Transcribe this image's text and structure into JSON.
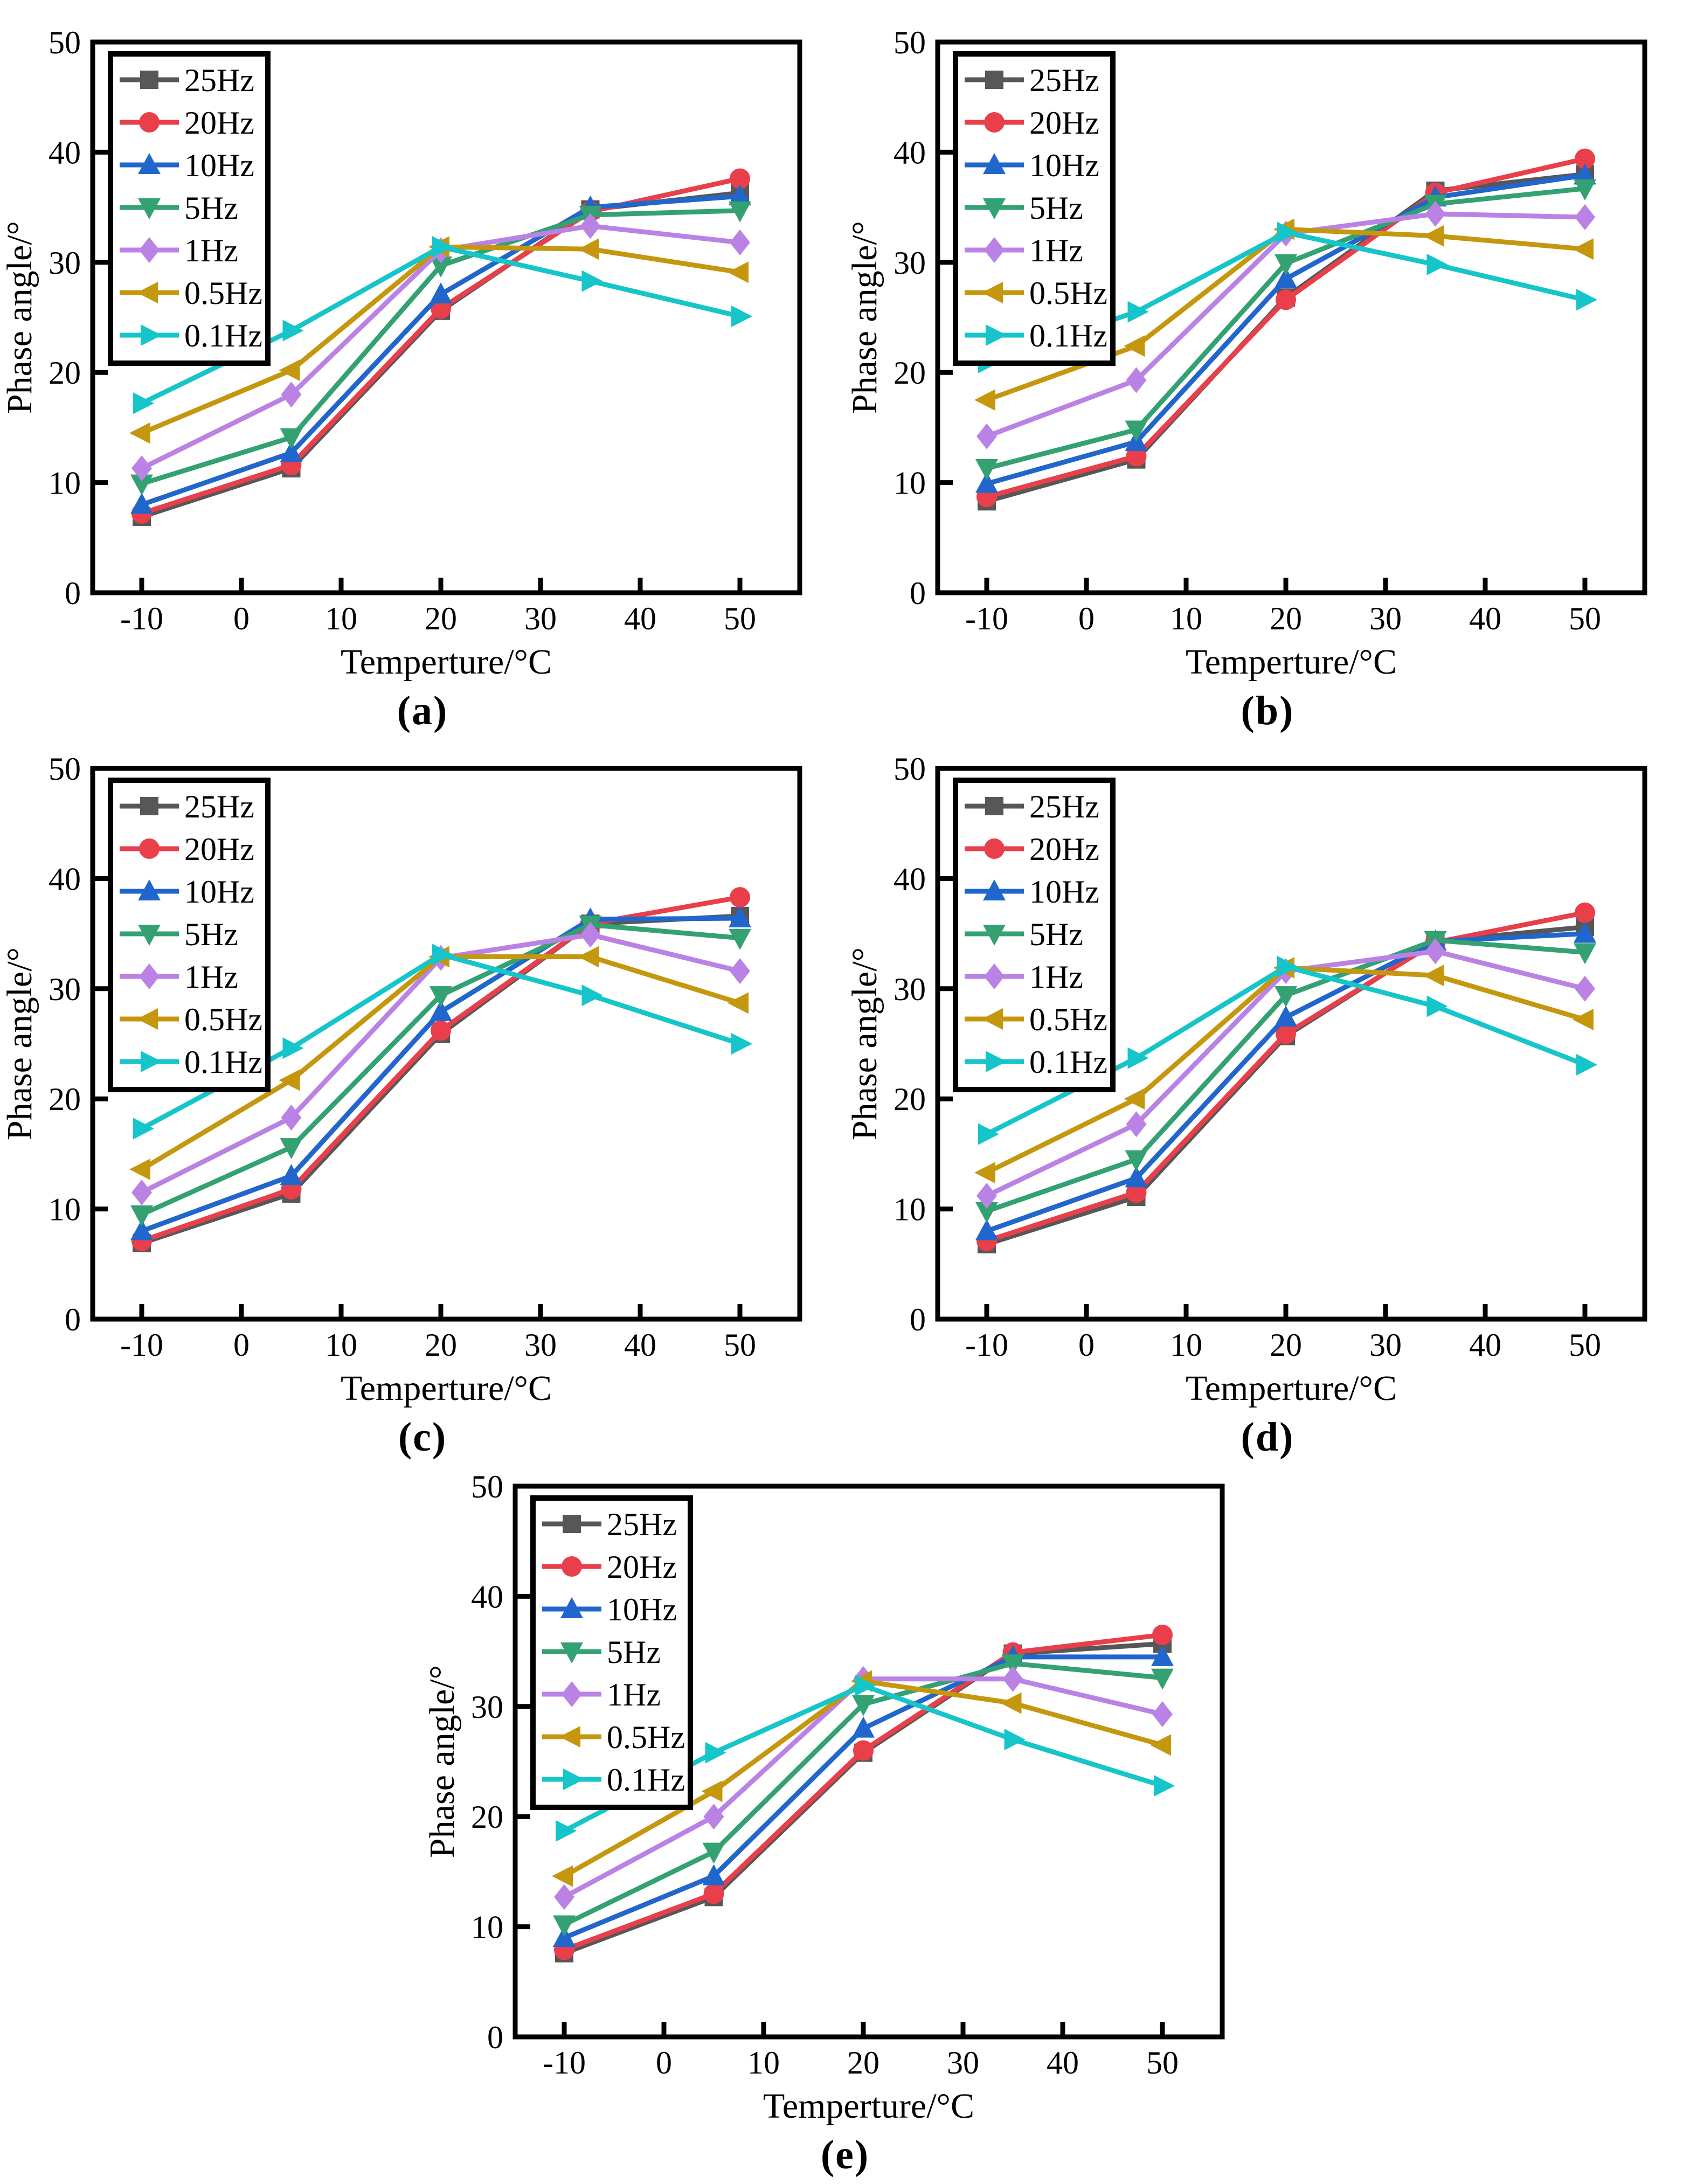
{
  "figure": {
    "background": "#ffffff",
    "axis_color": "#000000",
    "x_label": "Temperture/°C",
    "y_label": "Phase angle/°",
    "x_ticks": [
      -10,
      0,
      10,
      20,
      30,
      40,
      50
    ],
    "y_ticks": [
      0,
      10,
      20,
      30,
      40,
      50
    ],
    "xlim": [
      -14.9,
      56
    ],
    "ylim": [
      0,
      50
    ],
    "legend_entries": [
      "25Hz",
      "20Hz",
      "10Hz",
      "5Hz",
      "1Hz",
      "0.5Hz",
      "0.1Hz"
    ],
    "series_style": {
      "25Hz": {
        "color": "#575757",
        "marker": "square"
      },
      "20Hz": {
        "color": "#e93f4b",
        "marker": "circle"
      },
      "10Hz": {
        "color": "#2166cc",
        "marker": "triangle-up"
      },
      "5Hz": {
        "color": "#33a172",
        "marker": "triangle-down"
      },
      "1Hz": {
        "color": "#bb82e6",
        "marker": "diamond"
      },
      "0.5Hz": {
        "color": "#c4970e",
        "marker": "triangle-left"
      },
      "0.1Hz": {
        "color": "#16c5c9",
        "marker": "triangle-right"
      }
    }
  },
  "chart_data": [
    {
      "id": "a",
      "caption": "(a)",
      "type": "line",
      "xlabel": "Temperture/°C",
      "ylabel": "Phase angle/°",
      "x": [
        -10,
        5,
        20,
        35,
        50
      ],
      "series": [
        {
          "name": "25Hz",
          "values": [
            6.9,
            11.3,
            25.6,
            34.8,
            36.3
          ]
        },
        {
          "name": "20Hz",
          "values": [
            7.2,
            11.6,
            25.8,
            34.6,
            37.6
          ]
        },
        {
          "name": "10Hz",
          "values": [
            8.0,
            12.7,
            27.1,
            35.0,
            36.0
          ]
        },
        {
          "name": "5Hz",
          "values": [
            9.9,
            14.1,
            29.7,
            34.3,
            34.7
          ]
        },
        {
          "name": "1Hz",
          "values": [
            11.3,
            18.0,
            31.1,
            33.3,
            31.8
          ]
        },
        {
          "name": "0.5Hz",
          "values": [
            14.5,
            20.2,
            31.4,
            31.2,
            29.1
          ]
        },
        {
          "name": "0.1Hz",
          "values": [
            17.2,
            23.8,
            31.4,
            28.3,
            25.1
          ]
        }
      ]
    },
    {
      "id": "b",
      "caption": "(b)",
      "type": "line",
      "xlabel": "Temperture/°C",
      "ylabel": "Phase angle/°",
      "x": [
        -10,
        5,
        20,
        35,
        50
      ],
      "series": [
        {
          "name": "25Hz",
          "values": [
            8.3,
            12.1,
            26.8,
            36.5,
            38.0
          ]
        },
        {
          "name": "20Hz",
          "values": [
            8.7,
            12.4,
            26.6,
            36.3,
            39.4
          ]
        },
        {
          "name": "10Hz",
          "values": [
            9.9,
            13.7,
            28.5,
            35.9,
            37.9
          ]
        },
        {
          "name": "5Hz",
          "values": [
            11.3,
            14.8,
            29.9,
            35.3,
            36.7
          ]
        },
        {
          "name": "1Hz",
          "values": [
            14.2,
            19.3,
            32.6,
            34.4,
            34.1
          ]
        },
        {
          "name": "0.5Hz",
          "values": [
            17.5,
            22.4,
            33.0,
            32.4,
            31.2
          ]
        },
        {
          "name": "0.1Hz",
          "values": [
            20.9,
            25.5,
            32.7,
            29.8,
            26.6
          ]
        }
      ]
    },
    {
      "id": "c",
      "caption": "(c)",
      "type": "line",
      "xlabel": "Temperture/°C",
      "ylabel": "Phase angle/°",
      "x": [
        -10,
        5,
        20,
        35,
        50
      ],
      "series": [
        {
          "name": "25Hz",
          "values": [
            6.9,
            11.4,
            25.9,
            35.9,
            36.6
          ]
        },
        {
          "name": "20Hz",
          "values": [
            7.1,
            11.8,
            26.2,
            35.9,
            38.3
          ]
        },
        {
          "name": "10Hz",
          "values": [
            8.0,
            13.0,
            27.9,
            36.3,
            36.4
          ]
        },
        {
          "name": "5Hz",
          "values": [
            9.5,
            15.6,
            29.4,
            35.8,
            34.6
          ]
        },
        {
          "name": "1Hz",
          "values": [
            11.5,
            18.3,
            32.8,
            34.9,
            31.6
          ]
        },
        {
          "name": "0.5Hz",
          "values": [
            13.6,
            21.7,
            32.9,
            32.9,
            28.7
          ]
        },
        {
          "name": "0.1Hz",
          "values": [
            17.3,
            24.6,
            33.1,
            29.4,
            25.0
          ]
        }
      ]
    },
    {
      "id": "d",
      "caption": "(d)",
      "type": "line",
      "xlabel": "Temperture/°C",
      "ylabel": "Phase angle/°",
      "x": [
        -10,
        5,
        20,
        35,
        50
      ],
      "series": [
        {
          "name": "25Hz",
          "values": [
            6.8,
            11.1,
            25.7,
            34.3,
            35.6
          ]
        },
        {
          "name": "20Hz",
          "values": [
            7.1,
            11.5,
            25.9,
            34.2,
            36.9
          ]
        },
        {
          "name": "10Hz",
          "values": [
            8.0,
            12.8,
            27.4,
            34.3,
            35.0
          ]
        },
        {
          "name": "5Hz",
          "values": [
            9.8,
            14.5,
            29.4,
            34.4,
            33.3
          ]
        },
        {
          "name": "1Hz",
          "values": [
            11.2,
            17.7,
            31.6,
            33.4,
            30.0
          ]
        },
        {
          "name": "0.5Hz",
          "values": [
            13.3,
            20.0,
            31.9,
            31.2,
            27.2
          ]
        },
        {
          "name": "0.1Hz",
          "values": [
            16.8,
            23.7,
            32.0,
            28.4,
            23.1
          ]
        }
      ]
    },
    {
      "id": "e",
      "caption": "(e)",
      "type": "line",
      "xlabel": "Temperture/°C",
      "ylabel": "Phase angle/°",
      "x": [
        -10,
        5,
        20,
        35,
        50
      ],
      "series": [
        {
          "name": "25Hz",
          "values": [
            7.6,
            12.7,
            25.8,
            34.8,
            35.7
          ]
        },
        {
          "name": "20Hz",
          "values": [
            7.9,
            13.0,
            26.0,
            34.9,
            36.5
          ]
        },
        {
          "name": "10Hz",
          "values": [
            9.0,
            14.6,
            28.0,
            34.5,
            34.5
          ]
        },
        {
          "name": "5Hz",
          "values": [
            10.2,
            16.8,
            30.2,
            33.9,
            32.6
          ]
        },
        {
          "name": "1Hz",
          "values": [
            12.7,
            20.0,
            32.5,
            32.5,
            29.3
          ]
        },
        {
          "name": "0.5Hz",
          "values": [
            14.6,
            22.3,
            32.3,
            30.3,
            26.5
          ]
        },
        {
          "name": "0.1Hz",
          "values": [
            18.7,
            25.8,
            31.9,
            27.0,
            22.8
          ]
        }
      ]
    }
  ]
}
